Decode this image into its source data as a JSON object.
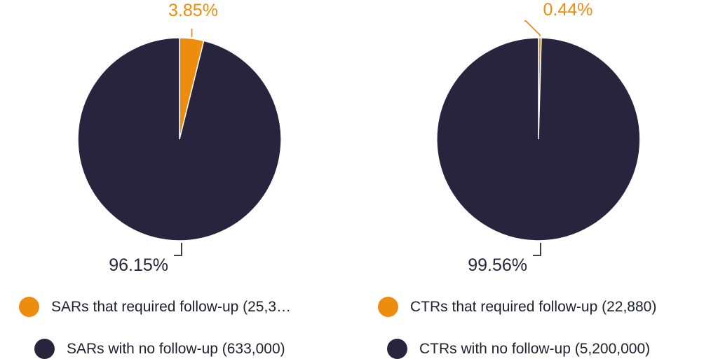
{
  "colors": {
    "followup": "#ee8d0d",
    "no_followup": "#29243d"
  },
  "chart_data": [
    {
      "type": "pie",
      "slices": [
        {
          "label": "SARs that required follow-up (25,3…",
          "value": 3.85,
          "display": "3.85%",
          "color": "#ee8d0d"
        },
        {
          "label": "SARs with no follow-up (633,000)",
          "value": 96.15,
          "display": "96.15%",
          "color": "#29243d"
        }
      ]
    },
    {
      "type": "pie",
      "slices": [
        {
          "label": "CTRs that required follow-up (22,880)",
          "value": 0.44,
          "display": "0.44%",
          "color": "#ee8d0d"
        },
        {
          "label": "CTRs with no follow-up (5,200,000)",
          "value": 99.56,
          "display": "99.56%",
          "color": "#29243d"
        }
      ]
    }
  ],
  "legend": [
    {
      "label": "SARs that required follow-up (25,3…",
      "color": "#ee8d0d"
    },
    {
      "label": "SARs with no follow-up (633,000)",
      "color": "#29243d"
    },
    {
      "label": "CTRs that required follow-up (22,880)",
      "color": "#ee8d0d"
    },
    {
      "label": "CTRs with no follow-up (5,200,000)",
      "color": "#29243d"
    }
  ]
}
